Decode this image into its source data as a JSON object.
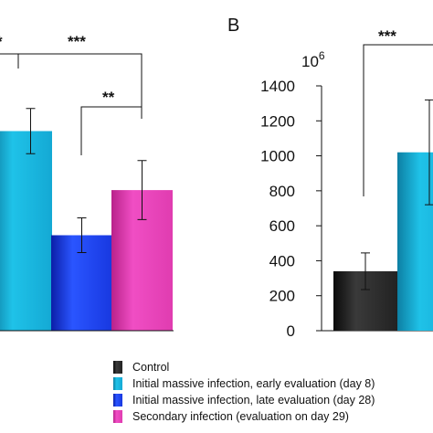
{
  "chart_data": [
    {
      "type": "bar",
      "panel_label": "",
      "categories": [
        "Initial massive infection, early evaluation (day 8)",
        "Initial massive infection, late evaluation (day 28)",
        "Secondary infection (evaluation on day 29)"
      ],
      "values": [
        1.15,
        0.55,
        0.81
      ],
      "errors": [
        0.13,
        0.1,
        0.17
      ],
      "colors": [
        "#19b4dc",
        "#1a3ee8",
        "#e63cb4"
      ],
      "significance": [
        {
          "label": "***",
          "from": -1,
          "to": 2
        },
        {
          "label": "**",
          "from": 1,
          "to": 2
        }
      ],
      "ylim": [
        0,
        1.8
      ]
    },
    {
      "type": "bar",
      "panel_label": "B",
      "scale_label": "10",
      "scale_exponent": "6",
      "categories": [
        "Control",
        "Initial massive infection, early evaluation (day 8)"
      ],
      "values": [
        340,
        1020
      ],
      "errors": [
        105,
        300
      ],
      "colors": [
        "#2a2a2a",
        "#19b4dc"
      ],
      "yticks": [
        "0",
        "200",
        "400",
        "600",
        "800",
        "1000",
        "1200",
        "1400"
      ],
      "significance": [
        {
          "label": "***",
          "from": 0,
          "to": 1
        }
      ],
      "ylim": [
        0,
        1400
      ]
    }
  ],
  "legend": {
    "items": [
      {
        "label": "Control",
        "color": "#2a2a2a"
      },
      {
        "label": "Initial massive infection, early evaluation (day 8)",
        "color": "#19b4dc"
      },
      {
        "label": "Initial massive infection, late evaluation (day 28)",
        "color": "#1a3ee8"
      },
      {
        "label": "Secondary infection (evaluation on day 29)",
        "color": "#e63cb4"
      }
    ]
  }
}
